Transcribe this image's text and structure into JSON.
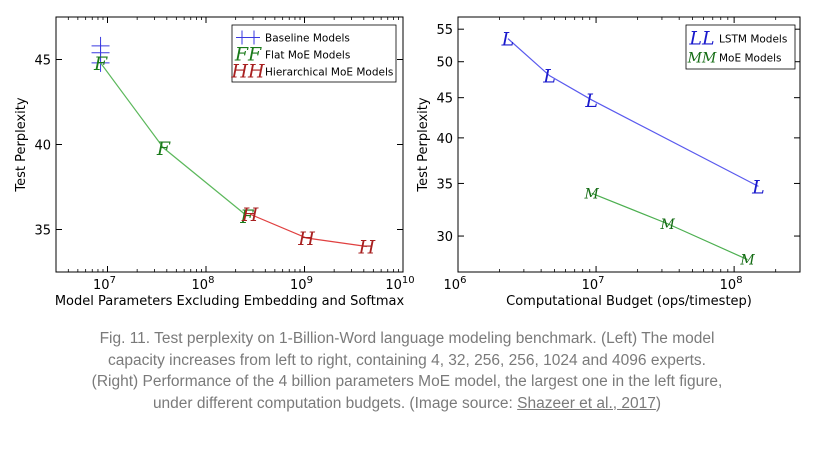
{
  "chart_data": [
    {
      "type": "line",
      "xscale": "log",
      "xlabel": "Model Parameters Excluding Embedding and Softmax",
      "ylabel": "Test Perplexity",
      "xlim": [
        3000000,
        10000000000
      ],
      "ylim": [
        32.5,
        47.5
      ],
      "x_ticks": [
        {
          "value": 10000000,
          "base": "10",
          "exp": "7"
        },
        {
          "value": 100000000,
          "base": "10",
          "exp": "8"
        },
        {
          "value": 1000000000,
          "base": "10",
          "exp": "9"
        },
        {
          "value": 10000000000,
          "base": "10",
          "exp": "10"
        }
      ],
      "y_ticks": [
        35,
        40,
        45
      ],
      "legend_position": "top-right",
      "series": [
        {
          "name": "Baseline Models",
          "marker": "+",
          "color": "#3a3ae0",
          "x": [
            8500000,
            8500000,
            8500000
          ],
          "y": [
            45.8,
            45.4,
            44.8
          ]
        },
        {
          "name": "Flat MoE Models",
          "marker": "F",
          "color": "#1a7a1a",
          "line_color": "#5cb85c",
          "x": [
            8500000,
            37000000,
            260000000
          ],
          "y": [
            44.8,
            39.8,
            35.8
          ]
        },
        {
          "name": "Hierarchical MoE Models",
          "marker": "H",
          "color": "#a82020",
          "line_color": "#e04040",
          "x": [
            280000000,
            1050000000,
            4300000000
          ],
          "y": [
            35.9,
            34.5,
            34.0
          ]
        }
      ],
      "legend": [
        {
          "label": "Baseline Models",
          "marker": "+",
          "color": "#3a3ae0"
        },
        {
          "label": "Flat MoE Models",
          "marker": "FF",
          "color": "#1a7a1a"
        },
        {
          "label": "Hierarchical MoE Models",
          "marker": "HH",
          "color": "#a82020"
        }
      ]
    },
    {
      "type": "line",
      "xscale": "log",
      "yscale": "log",
      "xlabel": "Computational Budget (ops/timestep)",
      "ylabel": "Test Perplexity",
      "xlim": [
        1000000,
        300000000
      ],
      "ylim": [
        27,
        57
      ],
      "x_ticks": [
        {
          "value": 1000000,
          "base": "10",
          "exp": "6"
        },
        {
          "value": 10000000,
          "base": "10",
          "exp": "7"
        },
        {
          "value": 100000000,
          "base": "10",
          "exp": "8"
        }
      ],
      "y_ticks": [
        30,
        35,
        40,
        45,
        50,
        55
      ],
      "legend_position": "top-right",
      "series": [
        {
          "name": "LSTM Models",
          "marker": "L",
          "color": "#1a1acc",
          "line_color": "#5a5aee",
          "x": [
            2300000,
            4600000,
            9300000,
            150000000
          ],
          "y": [
            53.5,
            48.0,
            44.7,
            34.7
          ]
        },
        {
          "name": "MoE Models",
          "marker": "M",
          "color": "#136b13",
          "line_color": "#4caf50",
          "x": [
            9300000,
            33000000,
            125000000
          ],
          "y": [
            34.0,
            31.1,
            28.0
          ]
        }
      ],
      "legend": [
        {
          "label": "LSTM Models",
          "marker": "LL",
          "color": "#1a1acc"
        },
        {
          "label": "MoE Models",
          "marker": "MM",
          "color": "#136b13"
        }
      ]
    }
  ],
  "caption": {
    "text": "Fig. 11. Test perplexity on 1-Billion-Word language modeling benchmark. (Left) The model capacity increases from left to right, containing 4, 32, 256, 256, 1024 and 4096 experts. (Right) Performance of the 4 billion parameters MoE model, the largest one in the left figure, under different computation budgets. (Image source: ",
    "link_text": "Shazeer et al., 2017",
    "tail": ")"
  }
}
